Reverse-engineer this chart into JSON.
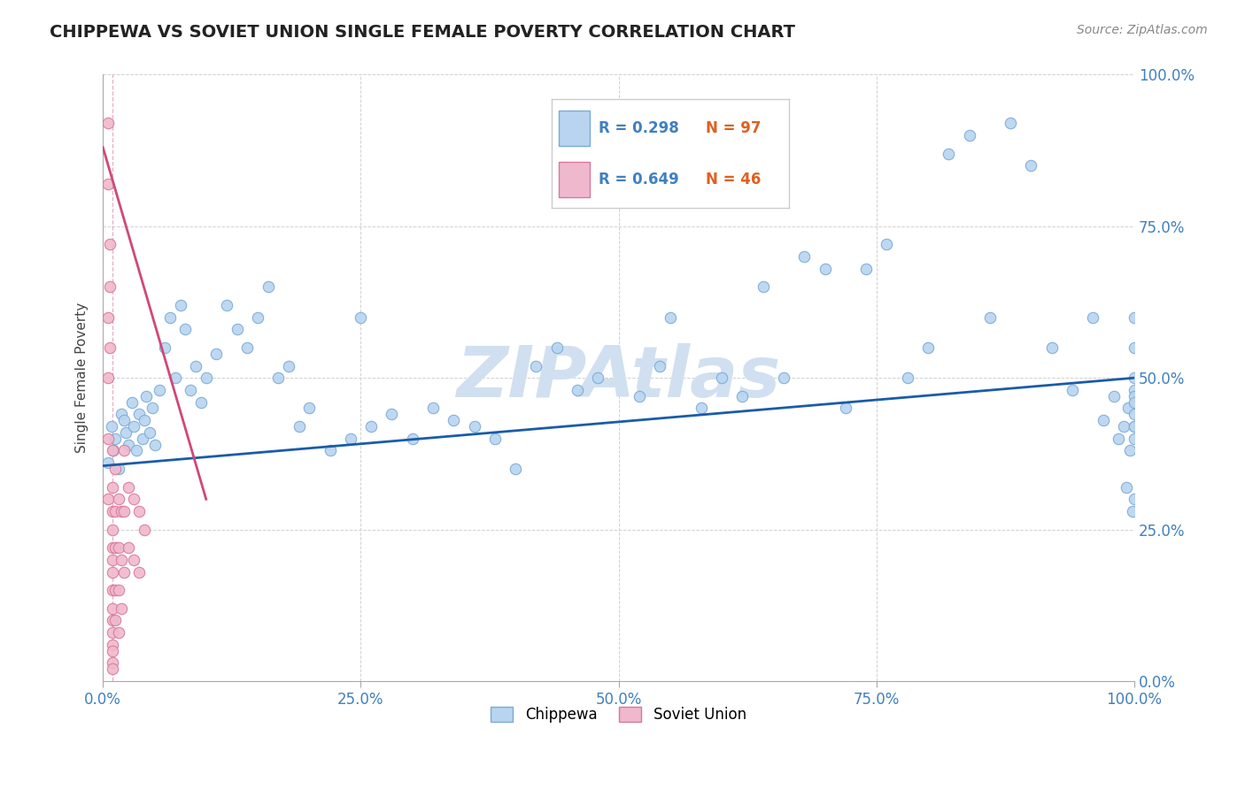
{
  "title": "CHIPPEWA VS SOVIET UNION SINGLE FEMALE POVERTY CORRELATION CHART",
  "source": "Source: ZipAtlas.com",
  "ylabel": "Single Female Poverty",
  "xlim": [
    0.0,
    1.0
  ],
  "ylim": [
    0.0,
    1.0
  ],
  "xticks": [
    0.0,
    0.25,
    0.5,
    0.75,
    1.0
  ],
  "xtick_labels": [
    "0.0%",
    "25.0%",
    "50.0%",
    "75.0%",
    "100.0%"
  ],
  "ytick_labels": [
    "0.0%",
    "25.0%",
    "50.0%",
    "75.0%",
    "100.0%"
  ],
  "chippewa_color": "#b8d4f0",
  "chippewa_edge_color": "#7aaad8",
  "soviet_color": "#f0b8cc",
  "soviet_edge_color": "#d8789a",
  "regression_blue": "#1a5ca8",
  "regression_pink": "#d04878",
  "watermark_color": "#d0e0f0",
  "legend_blue_r": "R = 0.298",
  "legend_blue_n": "N = 97",
  "legend_pink_r": "R = 0.649",
  "legend_pink_n": "N = 46",
  "chippewa_r": 0.298,
  "soviet_r": 0.649,
  "chippewa_n": 97,
  "soviet_n": 46,
  "title_fontsize": 14,
  "axis_label_fontsize": 11,
  "tick_fontsize": 12,
  "marker_size": 80,
  "background_color": "#ffffff",
  "chippewa_x": [
    0.005,
    0.008,
    0.01,
    0.012,
    0.015,
    0.018,
    0.02,
    0.022,
    0.025,
    0.028,
    0.03,
    0.032,
    0.035,
    0.038,
    0.04,
    0.042,
    0.045,
    0.048,
    0.05,
    0.055,
    0.06,
    0.065,
    0.07,
    0.075,
    0.08,
    0.085,
    0.09,
    0.095,
    0.1,
    0.11,
    0.12,
    0.13,
    0.14,
    0.15,
    0.16,
    0.17,
    0.18,
    0.19,
    0.2,
    0.22,
    0.24,
    0.25,
    0.26,
    0.28,
    0.3,
    0.32,
    0.34,
    0.36,
    0.38,
    0.4,
    0.42,
    0.44,
    0.46,
    0.48,
    0.5,
    0.52,
    0.54,
    0.55,
    0.58,
    0.6,
    0.62,
    0.64,
    0.66,
    0.68,
    0.7,
    0.72,
    0.74,
    0.76,
    0.78,
    0.8,
    0.82,
    0.84,
    0.86,
    0.88,
    0.9,
    0.92,
    0.94,
    0.96,
    0.97,
    0.98,
    0.985,
    0.99,
    0.992,
    0.994,
    0.996,
    0.998,
    1.0,
    1.0,
    1.0,
    1.0,
    1.0,
    1.0,
    1.0,
    1.0,
    1.0,
    1.0,
    1.0
  ],
  "chippewa_y": [
    0.36,
    0.42,
    0.38,
    0.4,
    0.35,
    0.44,
    0.43,
    0.41,
    0.39,
    0.46,
    0.42,
    0.38,
    0.44,
    0.4,
    0.43,
    0.47,
    0.41,
    0.45,
    0.39,
    0.48,
    0.55,
    0.6,
    0.5,
    0.62,
    0.58,
    0.48,
    0.52,
    0.46,
    0.5,
    0.54,
    0.62,
    0.58,
    0.55,
    0.6,
    0.65,
    0.5,
    0.52,
    0.42,
    0.45,
    0.38,
    0.4,
    0.6,
    0.42,
    0.44,
    0.4,
    0.45,
    0.43,
    0.42,
    0.4,
    0.35,
    0.52,
    0.55,
    0.48,
    0.5,
    0.8,
    0.47,
    0.52,
    0.6,
    0.45,
    0.5,
    0.47,
    0.65,
    0.5,
    0.7,
    0.68,
    0.45,
    0.68,
    0.72,
    0.5,
    0.55,
    0.87,
    0.9,
    0.6,
    0.92,
    0.85,
    0.55,
    0.48,
    0.6,
    0.43,
    0.47,
    0.4,
    0.42,
    0.32,
    0.45,
    0.38,
    0.28,
    0.3,
    0.48,
    0.44,
    0.42,
    0.47,
    0.4,
    0.55,
    0.46,
    0.6,
    0.5,
    0.42
  ],
  "soviet_x": [
    0.005,
    0.005,
    0.005,
    0.005,
    0.005,
    0.005,
    0.007,
    0.007,
    0.007,
    0.009,
    0.009,
    0.009,
    0.009,
    0.009,
    0.009,
    0.009,
    0.009,
    0.009,
    0.009,
    0.009,
    0.009,
    0.009,
    0.009,
    0.009,
    0.012,
    0.012,
    0.012,
    0.012,
    0.012,
    0.015,
    0.015,
    0.015,
    0.015,
    0.018,
    0.018,
    0.018,
    0.02,
    0.02,
    0.02,
    0.025,
    0.025,
    0.03,
    0.03,
    0.035,
    0.035,
    0.04
  ],
  "soviet_y": [
    0.92,
    0.82,
    0.6,
    0.5,
    0.4,
    0.3,
    0.72,
    0.65,
    0.55,
    0.38,
    0.32,
    0.28,
    0.25,
    0.22,
    0.2,
    0.18,
    0.15,
    0.12,
    0.1,
    0.08,
    0.06,
    0.05,
    0.03,
    0.02,
    0.35,
    0.28,
    0.22,
    0.15,
    0.1,
    0.3,
    0.22,
    0.15,
    0.08,
    0.28,
    0.2,
    0.12,
    0.38,
    0.28,
    0.18,
    0.32,
    0.22,
    0.3,
    0.2,
    0.28,
    0.18,
    0.25
  ]
}
